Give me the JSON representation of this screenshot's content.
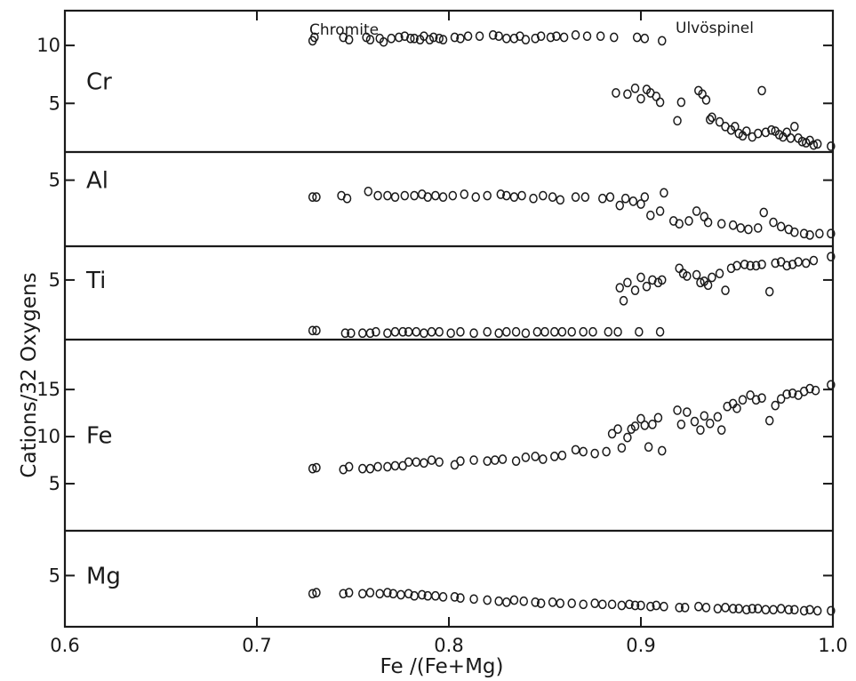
{
  "chart_data": {
    "type": "scatter",
    "xlabel": "Fe /(Fe+Mg)",
    "ylabel": "Cations/32 Oxygens",
    "xlim": [
      0.6,
      1.0
    ],
    "x_ticks": [
      0.6,
      0.7,
      0.8,
      0.9,
      1.0
    ],
    "x_tick_labels": [
      "0.6",
      "0.7",
      "0.8",
      "0.9",
      "1.0"
    ],
    "grid": false,
    "legend": "none",
    "annotations": [
      "Chromite",
      "Ulvöspinel"
    ],
    "panels": [
      {
        "name": "Cr",
        "ylim": [
          0.8,
          13.0
        ],
        "y_ticks": [
          5,
          10
        ],
        "y_tick_labels": [
          "5",
          "10"
        ],
        "x": [
          0.729,
          0.73,
          0.745,
          0.748,
          0.757,
          0.759,
          0.764,
          0.766,
          0.77,
          0.774,
          0.777,
          0.78,
          0.782,
          0.785,
          0.787,
          0.79,
          0.792,
          0.795,
          0.797,
          0.803,
          0.806,
          0.81,
          0.816,
          0.823,
          0.826,
          0.83,
          0.834,
          0.837,
          0.84,
          0.845,
          0.848,
          0.853,
          0.856,
          0.86,
          0.866,
          0.872,
          0.879,
          0.886,
          0.898,
          0.902,
          0.911,
          0.887,
          0.893,
          0.897,
          0.9,
          0.903,
          0.905,
          0.908,
          0.91,
          0.919,
          0.921,
          0.93,
          0.932,
          0.934,
          0.936,
          0.937,
          0.941,
          0.944,
          0.947,
          0.949,
          0.951,
          0.953,
          0.955,
          0.958,
          0.961,
          0.963,
          0.965,
          0.968,
          0.97,
          0.972,
          0.974,
          0.976,
          0.978,
          0.98,
          0.982,
          0.984,
          0.986,
          0.988,
          0.99,
          0.992,
          0.999
        ],
        "y": [
          10.4,
          10.7,
          10.7,
          10.5,
          10.7,
          10.5,
          10.6,
          10.3,
          10.6,
          10.7,
          10.8,
          10.6,
          10.6,
          10.5,
          10.8,
          10.5,
          10.7,
          10.6,
          10.5,
          10.7,
          10.6,
          10.8,
          10.8,
          10.9,
          10.8,
          10.6,
          10.6,
          10.8,
          10.5,
          10.6,
          10.8,
          10.7,
          10.8,
          10.7,
          10.9,
          10.8,
          10.8,
          10.7,
          10.7,
          10.6,
          10.4,
          5.9,
          5.8,
          6.3,
          5.4,
          6.2,
          5.9,
          5.6,
          5.1,
          3.5,
          5.1,
          6.1,
          5.8,
          5.3,
          3.6,
          3.8,
          3.4,
          3.0,
          2.7,
          3.0,
          2.4,
          2.2,
          2.6,
          2.1,
          2.4,
          6.1,
          2.5,
          2.7,
          2.6,
          2.3,
          2.1,
          2.5,
          2.0,
          3.0,
          2.0,
          1.7,
          1.6,
          1.8,
          1.4,
          1.5,
          1.3
        ]
      },
      {
        "name": "Al",
        "ylim": [
          0.3,
          7.0
        ],
        "y_ticks": [
          5
        ],
        "y_tick_labels": [
          "5"
        ],
        "x": [
          0.729,
          0.731,
          0.744,
          0.747,
          0.758,
          0.763,
          0.768,
          0.772,
          0.777,
          0.782,
          0.786,
          0.789,
          0.793,
          0.797,
          0.802,
          0.808,
          0.814,
          0.82,
          0.827,
          0.83,
          0.834,
          0.838,
          0.844,
          0.849,
          0.854,
          0.858,
          0.866,
          0.871,
          0.88,
          0.884,
          0.889,
          0.892,
          0.896,
          0.9,
          0.902,
          0.905,
          0.91,
          0.912,
          0.917,
          0.92,
          0.925,
          0.929,
          0.933,
          0.935,
          0.942,
          0.948,
          0.952,
          0.956,
          0.961,
          0.964,
          0.969,
          0.973,
          0.977,
          0.98,
          0.985,
          0.988,
          0.993,
          0.999
        ],
        "y": [
          3.8,
          3.8,
          3.9,
          3.7,
          4.2,
          3.9,
          3.9,
          3.8,
          3.9,
          3.9,
          4.0,
          3.8,
          3.9,
          3.8,
          3.9,
          4.0,
          3.8,
          3.9,
          4.0,
          3.9,
          3.8,
          3.9,
          3.7,
          3.9,
          3.8,
          3.6,
          3.8,
          3.8,
          3.7,
          3.8,
          3.2,
          3.7,
          3.5,
          3.3,
          3.8,
          2.5,
          2.8,
          4.1,
          2.1,
          1.9,
          2.1,
          2.8,
          2.4,
          2.0,
          1.9,
          1.8,
          1.6,
          1.5,
          1.6,
          2.7,
          2.0,
          1.7,
          1.5,
          1.3,
          1.2,
          1.1,
          1.2,
          1.2
        ]
      },
      {
        "name": "Ti",
        "ylim": [
          0.4,
          7.6
        ],
        "y_ticks": [
          5
        ],
        "y_tick_labels": [
          "5"
        ],
        "x": [
          0.729,
          0.731,
          0.746,
          0.749,
          0.755,
          0.759,
          0.762,
          0.768,
          0.772,
          0.776,
          0.779,
          0.783,
          0.787,
          0.791,
          0.795,
          0.801,
          0.806,
          0.813,
          0.82,
          0.826,
          0.83,
          0.835,
          0.84,
          0.846,
          0.85,
          0.855,
          0.859,
          0.864,
          0.87,
          0.875,
          0.883,
          0.888,
          0.899,
          0.91,
          0.889,
          0.891,
          0.893,
          0.897,
          0.9,
          0.903,
          0.906,
          0.909,
          0.911,
          0.92,
          0.922,
          0.924,
          0.929,
          0.931,
          0.933,
          0.935,
          0.937,
          0.941,
          0.944,
          0.947,
          0.95,
          0.954,
          0.957,
          0.96,
          0.963,
          0.967,
          0.97,
          0.973,
          0.976,
          0.979,
          0.982,
          0.986,
          0.99,
          0.999
        ],
        "y": [
          1.1,
          1.1,
          0.9,
          0.9,
          0.9,
          0.9,
          1.0,
          0.9,
          1.0,
          1.0,
          1.0,
          1.0,
          0.9,
          1.0,
          1.0,
          0.9,
          1.0,
          0.9,
          1.0,
          0.9,
          1.0,
          1.0,
          0.9,
          1.0,
          1.0,
          1.0,
          1.0,
          1.0,
          1.0,
          1.0,
          1.0,
          1.0,
          1.0,
          1.0,
          4.4,
          3.4,
          4.8,
          4.2,
          5.2,
          4.5,
          5.0,
          4.8,
          5.0,
          5.9,
          5.5,
          5.3,
          5.4,
          4.8,
          4.9,
          4.6,
          5.2,
          5.5,
          4.2,
          5.9,
          6.1,
          6.2,
          6.1,
          6.1,
          6.2,
          4.1,
          6.3,
          6.4,
          6.1,
          6.2,
          6.4,
          6.3,
          6.5,
          6.8
        ]
      },
      {
        "name": "Fe",
        "ylim": [
          0.0,
          20.3
        ],
        "y_ticks": [
          5,
          10,
          15
        ],
        "y_tick_labels": [
          "5",
          "10",
          "15"
        ],
        "x": [
          0.729,
          0.731,
          0.745,
          0.748,
          0.755,
          0.759,
          0.763,
          0.768,
          0.772,
          0.776,
          0.779,
          0.783,
          0.787,
          0.791,
          0.795,
          0.803,
          0.806,
          0.813,
          0.82,
          0.824,
          0.828,
          0.835,
          0.84,
          0.845,
          0.849,
          0.855,
          0.859,
          0.866,
          0.87,
          0.876,
          0.882,
          0.885,
          0.888,
          0.89,
          0.893,
          0.895,
          0.897,
          0.9,
          0.902,
          0.904,
          0.906,
          0.909,
          0.911,
          0.919,
          0.921,
          0.924,
          0.928,
          0.931,
          0.933,
          0.936,
          0.94,
          0.942,
          0.945,
          0.948,
          0.95,
          0.953,
          0.957,
          0.96,
          0.963,
          0.967,
          0.97,
          0.973,
          0.976,
          0.979,
          0.982,
          0.985,
          0.988,
          0.991,
          0.999
        ],
        "y": [
          6.6,
          6.7,
          6.5,
          6.8,
          6.6,
          6.6,
          6.8,
          6.8,
          6.9,
          6.9,
          7.3,
          7.3,
          7.2,
          7.5,
          7.3,
          7.0,
          7.4,
          7.5,
          7.4,
          7.5,
          7.6,
          7.4,
          7.8,
          7.9,
          7.6,
          7.9,
          8.0,
          8.6,
          8.4,
          8.2,
          8.4,
          10.3,
          10.8,
          8.8,
          9.9,
          10.8,
          11.1,
          11.9,
          11.2,
          8.9,
          11.3,
          12.0,
          8.5,
          12.8,
          11.3,
          12.6,
          11.6,
          10.7,
          12.2,
          11.4,
          12.1,
          10.7,
          13.2,
          13.5,
          13.0,
          13.9,
          14.4,
          13.9,
          14.1,
          11.7,
          13.3,
          14.0,
          14.5,
          14.6,
          14.4,
          14.8,
          15.1,
          14.9,
          15.5
        ]
      },
      {
        "name": "Mg",
        "ylim": [
          0.2,
          9.2
        ],
        "y_ticks": [
          5
        ],
        "y_tick_labels": [
          "5"
        ],
        "x": [
          0.729,
          0.731,
          0.745,
          0.748,
          0.755,
          0.759,
          0.764,
          0.768,
          0.771,
          0.775,
          0.779,
          0.782,
          0.786,
          0.789,
          0.793,
          0.797,
          0.803,
          0.806,
          0.813,
          0.82,
          0.826,
          0.83,
          0.834,
          0.839,
          0.845,
          0.848,
          0.854,
          0.858,
          0.864,
          0.87,
          0.876,
          0.88,
          0.885,
          0.89,
          0.894,
          0.897,
          0.9,
          0.905,
          0.908,
          0.912,
          0.92,
          0.923,
          0.93,
          0.934,
          0.94,
          0.944,
          0.948,
          0.951,
          0.955,
          0.958,
          0.961,
          0.965,
          0.969,
          0.973,
          0.977,
          0.98,
          0.985,
          0.988,
          0.992,
          0.999
        ],
        "y": [
          3.3,
          3.4,
          3.3,
          3.4,
          3.3,
          3.4,
          3.3,
          3.4,
          3.3,
          3.2,
          3.3,
          3.1,
          3.2,
          3.1,
          3.1,
          3.0,
          3.0,
          2.9,
          2.8,
          2.7,
          2.6,
          2.5,
          2.7,
          2.6,
          2.5,
          2.4,
          2.5,
          2.4,
          2.4,
          2.3,
          2.4,
          2.3,
          2.3,
          2.2,
          2.3,
          2.2,
          2.2,
          2.1,
          2.2,
          2.1,
          2.0,
          2.0,
          2.1,
          2.0,
          1.9,
          2.0,
          1.9,
          1.9,
          1.8,
          1.9,
          1.9,
          1.8,
          1.8,
          1.9,
          1.8,
          1.8,
          1.7,
          1.8,
          1.7,
          1.7
        ]
      }
    ]
  }
}
